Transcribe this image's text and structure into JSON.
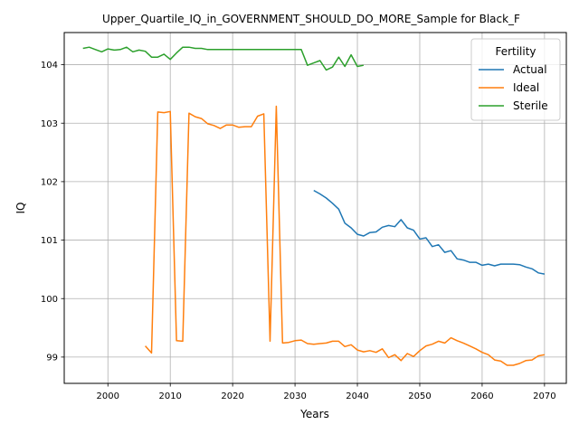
{
  "chart_data": {
    "type": "line",
    "title": "Upper_Quartile_IQ_in_GOVERNMENT_SHOULD_DO_MORE_Sample for Black_F",
    "xlabel": "Years",
    "ylabel": "IQ",
    "xlim": [
      1993,
      2073.5
    ],
    "ylim": [
      98.55,
      104.55
    ],
    "xticks": [
      2000,
      2010,
      2020,
      2030,
      2040,
      2050,
      2060,
      2070
    ],
    "yticks": [
      99,
      100,
      101,
      102,
      103,
      104
    ],
    "grid": true,
    "legend": {
      "title": "Fertility",
      "placement": "top-right"
    },
    "series": [
      {
        "name": "Actual",
        "color": "#1f77b4",
        "x": [
          2033,
          2034,
          2035,
          2036,
          2037,
          2038,
          2039,
          2040,
          2041,
          2042,
          2043,
          2044,
          2045,
          2046,
          2047,
          2048,
          2049,
          2050,
          2051,
          2052,
          2053,
          2054,
          2055,
          2056,
          2057,
          2058,
          2059,
          2060,
          2061,
          2062,
          2063,
          2064,
          2065,
          2066,
          2067,
          2068,
          2069,
          2070
        ],
        "y": [
          101.85,
          101.79,
          101.72,
          101.63,
          101.53,
          101.29,
          101.21,
          101.1,
          101.07,
          101.13,
          101.14,
          101.22,
          101.25,
          101.23,
          101.35,
          101.21,
          101.17,
          101.02,
          101.04,
          100.89,
          100.92,
          100.79,
          100.82,
          100.68,
          100.66,
          100.62,
          100.62,
          100.57,
          100.59,
          100.56,
          100.59,
          100.59,
          100.59,
          100.58,
          100.54,
          100.51,
          100.44,
          100.42
        ]
      },
      {
        "name": "Ideal",
        "color": "#ff7f0e",
        "x": [
          2006,
          2007,
          2008,
          2009,
          2010,
          2011,
          2012,
          2013,
          2014,
          2015,
          2016,
          2017,
          2018,
          2019,
          2020,
          2021,
          2022,
          2023,
          2024,
          2025,
          2026,
          2027,
          2028,
          2029,
          2030,
          2031,
          2032,
          2033,
          2034,
          2035,
          2036,
          2037,
          2038,
          2039,
          2040,
          2041,
          2042,
          2043,
          2044,
          2045,
          2046,
          2047,
          2048,
          2049,
          2050,
          2051,
          2052,
          2053,
          2054,
          2055,
          2056,
          2057,
          2058,
          2059,
          2060,
          2061,
          2062,
          2063,
          2064,
          2065,
          2066,
          2067,
          2068,
          2069,
          2070
        ],
        "y": [
          99.19,
          99.07,
          103.19,
          103.18,
          103.2,
          99.28,
          99.27,
          103.17,
          103.11,
          103.08,
          102.99,
          102.96,
          102.91,
          102.97,
          102.97,
          102.93,
          102.94,
          102.94,
          103.12,
          103.16,
          99.27,
          103.29,
          99.24,
          99.25,
          99.28,
          99.29,
          99.23,
          99.22,
          99.23,
          99.24,
          99.27,
          99.27,
          99.18,
          99.21,
          99.12,
          99.09,
          99.11,
          99.08,
          99.14,
          98.99,
          99.04,
          98.94,
          99.06,
          99.01,
          99.11,
          99.19,
          99.22,
          99.27,
          99.24,
          99.33,
          99.28,
          99.24,
          99.19,
          99.14,
          99.08,
          99.04,
          98.95,
          98.93,
          98.86,
          98.86,
          98.89,
          98.94,
          98.95,
          99.02,
          99.04
        ]
      },
      {
        "name": "Sterile",
        "color": "#2ca02c",
        "x": [
          1996,
          1997,
          1998,
          1999,
          2000,
          2001,
          2002,
          2003,
          2004,
          2005,
          2006,
          2007,
          2008,
          2009,
          2010,
          2011,
          2012,
          2013,
          2014,
          2015,
          2016,
          2017,
          2018,
          2019,
          2020,
          2021,
          2022,
          2023,
          2024,
          2025,
          2026,
          2027,
          2028,
          2029,
          2030,
          2031,
          2032,
          2033,
          2034,
          2035,
          2036,
          2037,
          2038,
          2039,
          2040,
          2041
        ],
        "y": [
          104.28,
          104.3,
          104.26,
          104.22,
          104.27,
          104.25,
          104.26,
          104.3,
          104.22,
          104.25,
          104.23,
          104.13,
          104.13,
          104.18,
          104.09,
          104.2,
          104.3,
          104.3,
          104.28,
          104.28,
          104.26,
          104.26,
          104.26,
          104.26,
          104.26,
          104.26,
          104.26,
          104.26,
          104.26,
          104.26,
          104.26,
          104.26,
          104.26,
          104.26,
          104.26,
          104.26,
          103.99,
          104.03,
          104.07,
          103.91,
          103.96,
          104.13,
          103.97,
          104.17,
          103.97,
          103.99
        ]
      }
    ]
  }
}
